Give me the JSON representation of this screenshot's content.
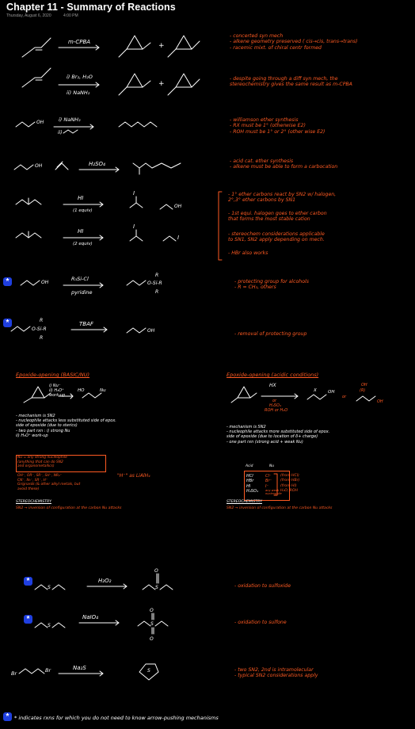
{
  "header": {
    "title": "Chapter 11 - Summary of Reactions",
    "date": "Thursday, August 6, 2020",
    "time": "4:00 PM"
  },
  "reagents": {
    "r1": "m-CPBA",
    "r2a": "i) Br₂, H₂O",
    "r2b": "ii) NaNH₂",
    "r3a": "i) NaNH₂",
    "r4": "H₂SO₄",
    "r5": "HI",
    "r5b": "(1 equiv)",
    "r6": "HI",
    "r6b": "(2 equiv)",
    "r7a": "R₃Si-Cl",
    "r7b": "pyridine",
    "r8": "TBAF",
    "r9": "H₂O₂",
    "r10": "NaIO₄",
    "r11": "Na₂S",
    "plus": "+",
    "or": "or"
  },
  "notes": {
    "n1": [
      "- concerted syn mech",
      "- alkene geometry preserved ( cis→cis, trans→trans)",
      "- racemic mixt. of chiral centr formed"
    ],
    "n2": [
      "- despite going through a diff syn mech, the",
      "  stereochemistry gives the same result as m-CPBA"
    ],
    "n3": [
      "- williamson ether synthesis",
      "- RX must be 1° (otherwise E2)",
      "- ROH must be 1° or 2° (other wise E2)"
    ],
    "n4": [
      "- acid cat. ether synthesis",
      "- alkene must be able to form a carbocation"
    ],
    "n5": [
      "- 1° ether carbons react by SN2 w/ halogen,",
      "  2°,3° ether carbons by SN1"
    ],
    "n6": [
      "- 1st equi. halogen goes to ether carbon",
      "  that forms the most stable cation"
    ],
    "n7": [
      "- stereochem considerations applicable",
      "  to SN1, SN2 apply depending on mech."
    ],
    "n8": [
      "- HBr also works"
    ],
    "n9": [
      "- protecting group for alcohols",
      "- R = CH₃, others"
    ],
    "n10": [
      "- removal of protecting group"
    ],
    "n11": [
      "- oxidation to sulfoxide"
    ],
    "n12": [
      "- oxidation to sulfone"
    ],
    "n13": [
      "- two SN2, 2nd is intramolecular",
      "- typical SN2 considerations apply"
    ]
  },
  "epox_basic": {
    "title": "Epoxide-opening (BASIC/NU)",
    "reagent1": "i) Nu⁻",
    "reagent2": "ii) H₃O⁺",
    "reagent3": "work-up",
    "lines": [
      "- mechanism is SN2",
      "- nucleophile attacks less substituted side of epox.",
      "  side of epoxide (due to sterics)",
      "- two part rxn : i) strong Nu",
      "                 ii) H₃O⁺ work-up"
    ],
    "nu_def": [
      "Nu = any strong nucleophile",
      "(anything that can do SN2",
      " and organometallics)"
    ],
    "nu_list": [
      "OH⁻, OR⁻, SR⁻, SH⁻, NR₂⁻",
      "CN⁻, N₃⁻, SR⁻, H⁻",
      "Grignards (& other alkyl metals, but",
      " avoid these)"
    ],
    "lah": "\"H⁻\" as LiAlH₄",
    "stereo_h": "STEREOCHEMISTRY",
    "stereo": "SN2 → inversion of configuration at the carbon Nu attacks"
  },
  "epox_acid": {
    "title": "Epoxide-opening (acidic conditions)",
    "reagent1": "HX",
    "reagent2": "or",
    "reagent3": "H₂SO₄",
    "reagent4": "ROH or H₂O",
    "lines": [
      "- mechanism is SN2",
      "- nucleophile attacks more substituted side of epox.",
      "  side of epoxide (due to location of δ+ charge)",
      "- one part rxn (strong acid + weak Nu)"
    ],
    "tbl_h1": "Acid",
    "tbl_h2": "Nu",
    "rows": [
      {
        "acid": "HCl",
        "nu": "Cl⁻",
        "src": "(from HCl)"
      },
      {
        "acid": "HBr",
        "nu": "Br⁻",
        "src": "(from HBr)"
      },
      {
        "acid": "HI",
        "nu": "I⁻",
        "src": "(from HI)"
      },
      {
        "acid": "H₂SO₄",
        "nu": "any weak nucleophile",
        "src": "H₂O, ROH"
      }
    ],
    "stereo_h": "STEREOCHEMISTRY",
    "stereo": "SN2 → inversion of configuration at the carbon Nu attacks"
  },
  "footer": "* indicates rxns for which you do not need to know arrow-pushing mechanisms",
  "colors": {
    "accent": "#ff5a22",
    "ink": "#ffffff",
    "star": "#1f3fe0",
    "purple": "#e040e0"
  }
}
